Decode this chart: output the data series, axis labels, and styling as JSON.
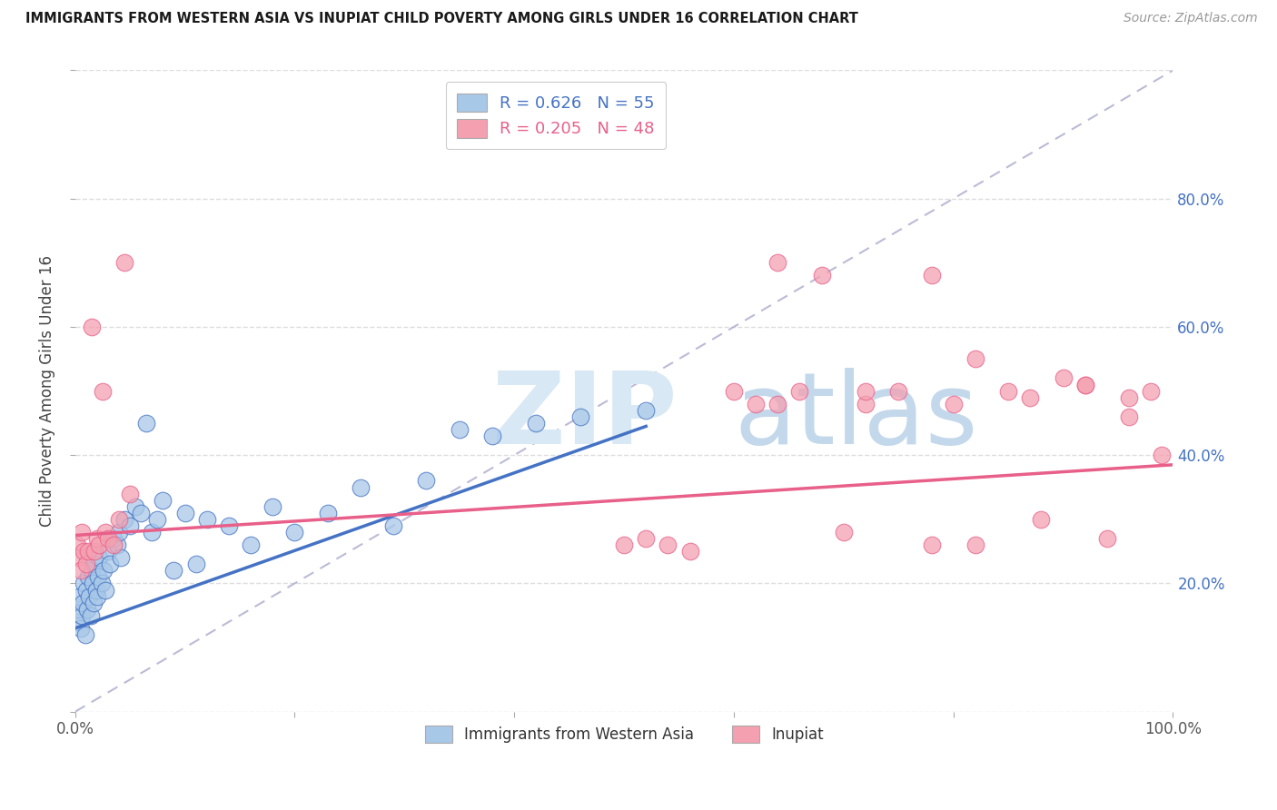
{
  "title": "IMMIGRANTS FROM WESTERN ASIA VS INUPIAT CHILD POVERTY AMONG GIRLS UNDER 16 CORRELATION CHART",
  "source": "Source: ZipAtlas.com",
  "ylabel": "Child Poverty Among Girls Under 16",
  "xlim": [
    0,
    1.0
  ],
  "ylim": [
    0,
    1.0
  ],
  "series1_color": "#A8C8E8",
  "series2_color": "#F4A0B0",
  "line1_color": "#4472C4",
  "line2_color": "#E8608A",
  "diagonal_color": "#AAAACC",
  "background_color": "#FFFFFF",
  "watermark_zip_color": "#D8E4F0",
  "watermark_atlas_color": "#C0D4E8",
  "scatter1_x": [
    0.002,
    0.003,
    0.004,
    0.005,
    0.006,
    0.007,
    0.008,
    0.009,
    0.01,
    0.011,
    0.012,
    0.013,
    0.014,
    0.015,
    0.016,
    0.017,
    0.018,
    0.019,
    0.02,
    0.021,
    0.022,
    0.024,
    0.026,
    0.028,
    0.03,
    0.032,
    0.035,
    0.038,
    0.04,
    0.042,
    0.045,
    0.05,
    0.055,
    0.06,
    0.065,
    0.07,
    0.075,
    0.08,
    0.09,
    0.1,
    0.11,
    0.12,
    0.14,
    0.16,
    0.18,
    0.2,
    0.23,
    0.26,
    0.29,
    0.32,
    0.35,
    0.38,
    0.42,
    0.46,
    0.52
  ],
  "scatter1_y": [
    0.14,
    0.16,
    0.18,
    0.13,
    0.15,
    0.17,
    0.2,
    0.12,
    0.19,
    0.16,
    0.21,
    0.18,
    0.15,
    0.22,
    0.2,
    0.17,
    0.23,
    0.19,
    0.18,
    0.21,
    0.24,
    0.2,
    0.22,
    0.19,
    0.25,
    0.23,
    0.27,
    0.26,
    0.28,
    0.24,
    0.3,
    0.29,
    0.32,
    0.31,
    0.45,
    0.28,
    0.3,
    0.33,
    0.22,
    0.31,
    0.23,
    0.3,
    0.29,
    0.26,
    0.32,
    0.28,
    0.31,
    0.35,
    0.29,
    0.36,
    0.44,
    0.43,
    0.45,
    0.46,
    0.47
  ],
  "scatter2_x": [
    0.002,
    0.003,
    0.005,
    0.006,
    0.008,
    0.01,
    0.012,
    0.015,
    0.018,
    0.02,
    0.022,
    0.025,
    0.028,
    0.03,
    0.035,
    0.04,
    0.045,
    0.05,
    0.5,
    0.52,
    0.54,
    0.56,
    0.6,
    0.62,
    0.64,
    0.66,
    0.7,
    0.72,
    0.75,
    0.78,
    0.8,
    0.82,
    0.85,
    0.88,
    0.9,
    0.92,
    0.94,
    0.96,
    0.98,
    0.99,
    0.64,
    0.68,
    0.72,
    0.78,
    0.82,
    0.87,
    0.92,
    0.96
  ],
  "scatter2_y": [
    0.26,
    0.24,
    0.22,
    0.28,
    0.25,
    0.23,
    0.25,
    0.6,
    0.25,
    0.27,
    0.26,
    0.5,
    0.28,
    0.27,
    0.26,
    0.3,
    0.7,
    0.34,
    0.26,
    0.27,
    0.26,
    0.25,
    0.5,
    0.48,
    0.48,
    0.5,
    0.28,
    0.48,
    0.5,
    0.26,
    0.48,
    0.26,
    0.5,
    0.3,
    0.52,
    0.51,
    0.27,
    0.46,
    0.5,
    0.4,
    0.7,
    0.68,
    0.5,
    0.68,
    0.55,
    0.49,
    0.51,
    0.49
  ],
  "line1_x0": 0.0,
  "line1_y0": 0.13,
  "line1_x1": 0.52,
  "line1_y1": 0.445,
  "line2_x0": 0.0,
  "line2_y0": 0.275,
  "line2_x1": 1.0,
  "line2_y1": 0.385
}
